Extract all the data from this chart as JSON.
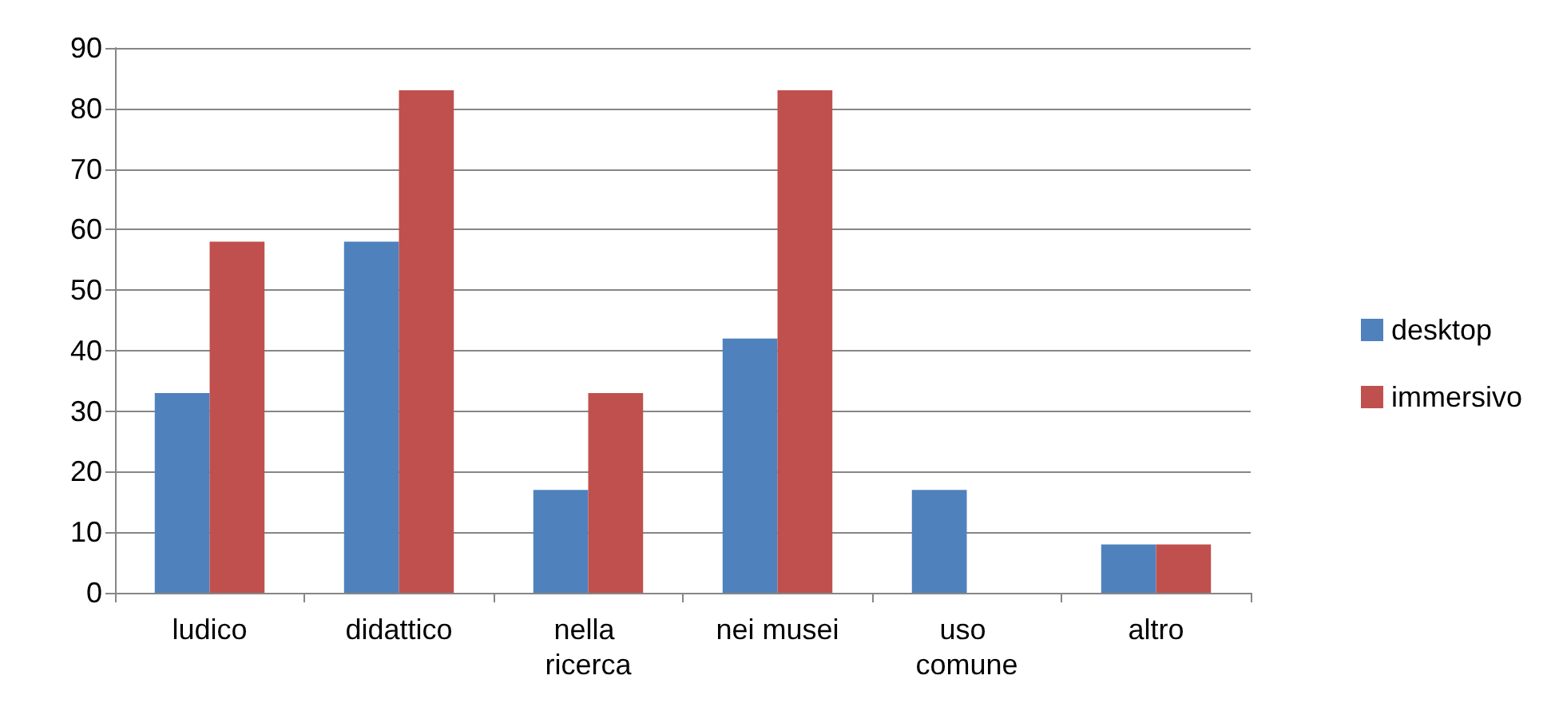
{
  "chart_data": {
    "type": "bar",
    "categories": [
      "ludico",
      "didattico",
      "nella ricerca",
      "nei musei",
      "uso comune",
      "altro"
    ],
    "series": [
      {
        "name": "desktop",
        "color": "#4f81bd",
        "values": [
          33,
          58,
          17,
          42,
          17,
          8
        ]
      },
      {
        "name": "immersivo",
        "color": "#c0504d",
        "values": [
          58,
          83,
          33,
          83,
          0,
          8
        ]
      }
    ],
    "ylim": [
      0,
      90
    ],
    "yticks": [
      0,
      10,
      20,
      30,
      40,
      50,
      60,
      70,
      80,
      90
    ],
    "grid": "y",
    "legend": "right"
  }
}
